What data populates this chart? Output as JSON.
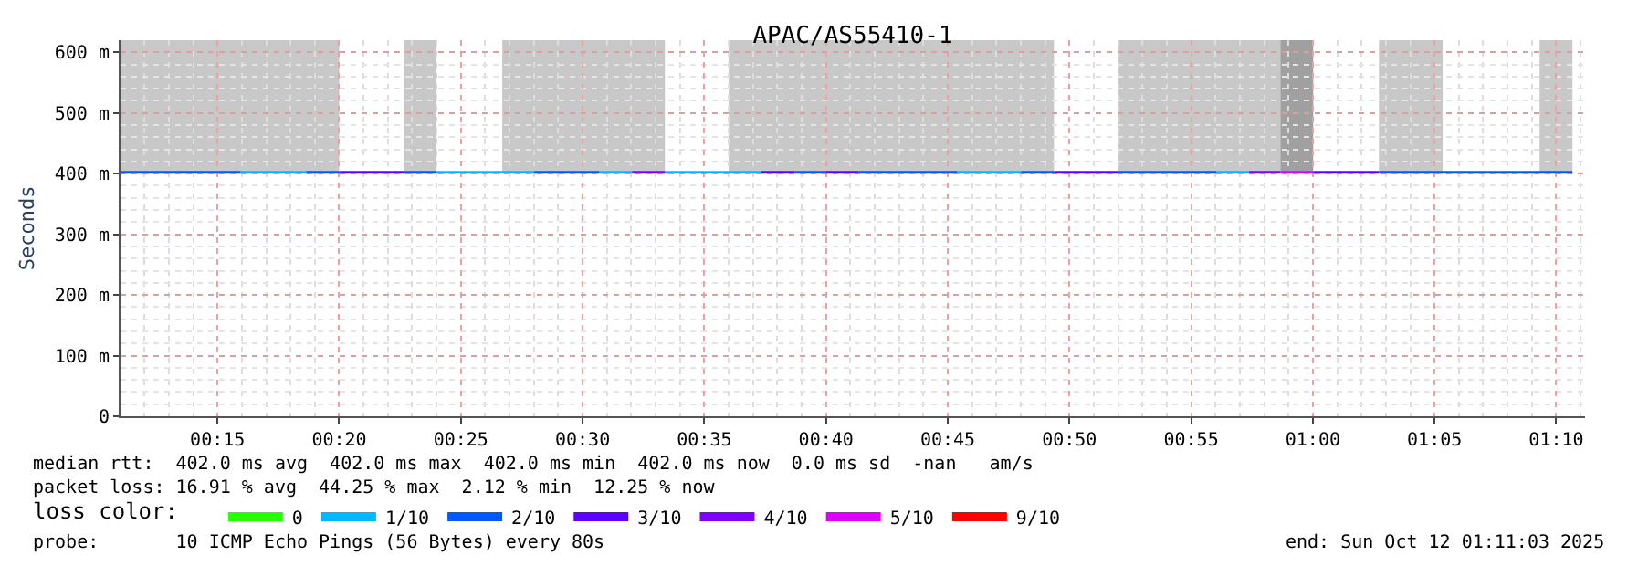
{
  "chart_data": {
    "type": "line",
    "title": "APAC/AS55410-1",
    "ylabel": "Seconds",
    "legend_title": "loss color:",
    "legend": "bottom",
    "xlim": [
      "2025-10-12T00:11:01",
      "2025-10-12T01:11:11"
    ],
    "xticks": [
      {
        "value": "2025-10-12T00:15",
        "label": "00:15"
      },
      {
        "value": "2025-10-12T00:20",
        "label": "00:20"
      },
      {
        "value": "2025-10-12T00:25",
        "label": "00:25"
      },
      {
        "value": "2025-10-12T00:30",
        "label": "00:30"
      },
      {
        "value": "2025-10-12T00:35",
        "label": "00:35"
      },
      {
        "value": "2025-10-12T00:40",
        "label": "00:40"
      },
      {
        "value": "2025-10-12T00:45",
        "label": "00:45"
      },
      {
        "value": "2025-10-12T00:50",
        "label": "00:50"
      },
      {
        "value": "2025-10-12T00:55",
        "label": "00:55"
      },
      {
        "value": "2025-10-12T01:00",
        "label": "01:00"
      },
      {
        "value": "2025-10-12T01:05",
        "label": "01:05"
      },
      {
        "value": "2025-10-12T01:10",
        "label": "01:10"
      }
    ],
    "ylim": [
      0,
      620
    ],
    "yticks": [
      0,
      {
        "value": 100,
        "label": "100 m"
      },
      {
        "value": 200,
        "label": "200 m"
      },
      {
        "value": 300,
        "label": "300 m"
      },
      {
        "value": 400,
        "label": "400 m"
      },
      {
        "value": 500,
        "label": "500 m"
      },
      {
        "value": 600,
        "label": "600 m"
      }
    ],
    "grid": true,
    "bands": [
      {
        "axis": "x",
        "from": "2025-10-12T00:11:01",
        "to": "2025-10-12T00:20:00",
        "color": "#c8c8c8"
      },
      {
        "axis": "x",
        "from": "2025-10-12T00:22:39",
        "to": "2025-10-12T00:24:00",
        "color": "#c8c8c8"
      },
      {
        "axis": "x",
        "from": "2025-10-12T00:26:42",
        "to": "2025-10-12T00:33:23",
        "color": "#c8c8c8"
      },
      {
        "axis": "x",
        "from": "2025-10-12T00:36:00",
        "to": "2025-10-12T00:49:22",
        "color": "#c8c8c8"
      },
      {
        "axis": "x",
        "from": "2025-10-12T00:51:59",
        "to": "2025-10-12T00:58:40",
        "color": "#c8c8c8"
      },
      {
        "axis": "x",
        "from": "2025-10-12T00:58:40",
        "to": "2025-10-12T01:00:01",
        "color": "#a0a0a0"
      },
      {
        "axis": "x",
        "from": "2025-10-12T01:02:43",
        "to": "2025-10-12T01:05:20",
        "color": "#c8c8c8"
      },
      {
        "axis": "x",
        "from": "2025-10-12T01:09:19",
        "to": "2025-10-12T01:10:40",
        "color": "#c8c8c8"
      }
    ],
    "series": [
      {
        "name": "0",
        "color": "#26ff00"
      },
      {
        "name": "1/10",
        "color": "#00b8ff",
        "x": [
          "2025-10-12T00:15:57",
          "2025-10-12T00:18:39",
          null,
          "2025-10-12T00:24:00",
          "2025-10-12T00:28:00",
          null,
          "2025-10-12T00:30:41",
          "2025-10-12T00:32:02",
          null,
          "2025-10-12T00:33:23",
          "2025-10-12T00:37:20",
          null,
          "2025-10-12T00:45:23",
          "2025-10-12T00:48:01",
          null,
          "2025-10-12T00:56:02",
          "2025-10-12T00:57:23"
        ],
        "values": [
          402,
          402,
          null,
          402,
          402,
          null,
          402,
          402,
          null,
          402,
          402,
          null,
          402,
          402,
          null,
          402,
          402
        ]
      },
      {
        "name": "2/10",
        "color": "#0059ff",
        "x": [
          "2025-10-12T00:11:01",
          "2025-10-12T00:15:57",
          null,
          "2025-10-12T00:18:39",
          "2025-10-12T00:20:00",
          null,
          "2025-10-12T00:22:39",
          "2025-10-12T00:24:00",
          null,
          "2025-10-12T00:28:00",
          "2025-10-12T00:30:41",
          null,
          "2025-10-12T00:38:43",
          "2025-10-12T00:39:59",
          null,
          "2025-10-12T00:41:20",
          "2025-10-12T00:45:23",
          null,
          "2025-10-12T00:48:01",
          "2025-10-12T00:49:22",
          null,
          "2025-10-12T00:51:59",
          "2025-10-12T00:56:02",
          null,
          "2025-10-12T01:02:43",
          "2025-10-12T01:10:40"
        ],
        "values": [
          402,
          402,
          null,
          402,
          402,
          null,
          402,
          402,
          null,
          402,
          402,
          null,
          402,
          402,
          null,
          402,
          402,
          null,
          402,
          402,
          null,
          402,
          402,
          null,
          402,
          402
        ]
      },
      {
        "name": "3/10",
        "color": "#5e00ff",
        "x": [
          "2025-10-12T00:20:00",
          "2025-10-12T00:22:39",
          null,
          "2025-10-12T00:37:20",
          "2025-10-12T00:38:43",
          null,
          "2025-10-12T00:39:59",
          "2025-10-12T00:41:20",
          null,
          "2025-10-12T00:49:22",
          "2025-10-12T00:51:59",
          null,
          "2025-10-12T01:00:01",
          "2025-10-12T01:02:43"
        ],
        "values": [
          402,
          402,
          null,
          402,
          402,
          null,
          402,
          402,
          null,
          402,
          402,
          null,
          402,
          402
        ]
      },
      {
        "name": "4/10",
        "color": "#7e00ff",
        "x": [
          "2025-10-12T00:32:02",
          "2025-10-12T00:33:23",
          null,
          "2025-10-12T00:57:23",
          "2025-10-12T00:58:40"
        ],
        "values": [
          402,
          402,
          null,
          402,
          402
        ]
      },
      {
        "name": "5/10",
        "color": "#dd00ff",
        "x": [
          "2025-10-12T00:58:40",
          "2025-10-12T01:00:01"
        ],
        "values": [
          402,
          402
        ]
      },
      {
        "name": "9/10",
        "color": "#ff0000"
      }
    ],
    "annotations": [
      "median rtt:  402.0 ms avg  402.0 ms max  402.0 ms min  402.0 ms now  0.0 ms sd  -nan   am/s",
      "packet loss: 16.91 % avg  44.25 % max  2.12 % min  12.25 % now",
      "probe:       10 ICMP Echo Pings (56 Bytes) every 80s",
      "end: Sun Oct 12 01:11:03 2025"
    ]
  }
}
